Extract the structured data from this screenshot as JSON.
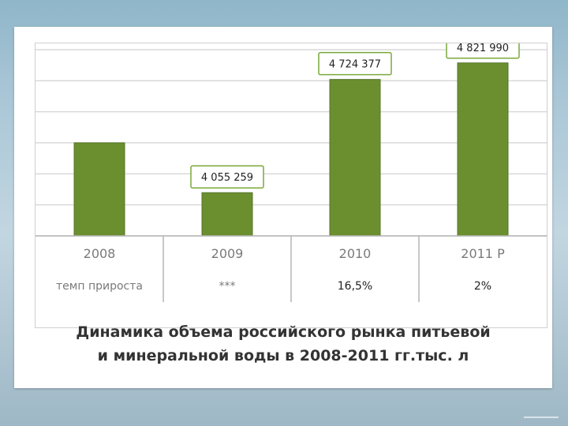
{
  "chart_data": {
    "type": "bar",
    "categories": [
      "2008",
      "2009",
      "2010",
      "2011 Р"
    ],
    "values": [
      4350000,
      4055259,
      4724377,
      4821990
    ],
    "data_labels": [
      "",
      "4 055 259",
      "4 724 377",
      "4 821 990"
    ],
    "ylim": [
      3800000,
      4900000
    ],
    "grid": true,
    "legend": "none",
    "bar_color": "#6b8e2f",
    "table": {
      "row_label": "темп прироста",
      "values": [
        "",
        "***",
        "16,5%",
        "2%"
      ]
    }
  },
  "caption": {
    "line1": "Динамика объема российского рынка питьевой",
    "line2": "и минеральной воды в 2008-2011 гг.тыс. л"
  }
}
